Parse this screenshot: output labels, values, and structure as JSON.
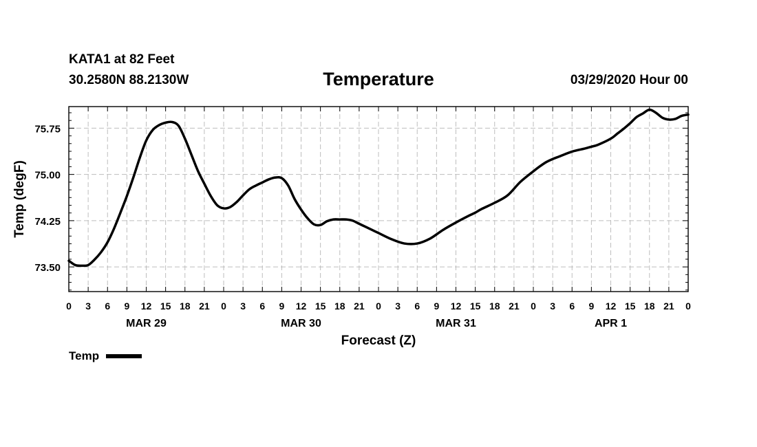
{
  "header": {
    "station": "KATA1 at 82 Feet",
    "coords": "30.2580N 88.2130W",
    "title": "Temperature",
    "issued": "03/29/2020 Hour 00"
  },
  "chart_data": {
    "type": "line",
    "title": "Temperature",
    "xlabel": "Forecast (Z)",
    "ylabel": "Temp (degF)",
    "ylim": [
      73.1,
      76.1
    ],
    "yticks": [
      73.5,
      74.25,
      75.0,
      75.75
    ],
    "ytick_labels": [
      "73.50",
      "74.25",
      "75.00",
      "75.75"
    ],
    "xlim": [
      0,
      96
    ],
    "xticks": [
      0,
      3,
      6,
      9,
      12,
      15,
      18,
      21,
      24,
      27,
      30,
      33,
      36,
      39,
      42,
      45,
      48,
      51,
      54,
      57,
      60,
      63,
      66,
      69,
      72,
      75,
      78,
      81,
      84,
      87,
      90,
      93,
      96
    ],
    "xtick_labels": [
      "0",
      "3",
      "6",
      "9",
      "12",
      "15",
      "18",
      "21",
      "0",
      "3",
      "6",
      "9",
      "12",
      "15",
      "18",
      "21",
      "0",
      "3",
      "6",
      "9",
      "12",
      "15",
      "18",
      "21",
      "0",
      "3",
      "6",
      "9",
      "12",
      "15",
      "18",
      "21",
      "0"
    ],
    "day_labels": [
      {
        "hour": 12,
        "label": "MAR 29"
      },
      {
        "hour": 36,
        "label": "MAR 30"
      },
      {
        "hour": 60,
        "label": "MAR 31"
      },
      {
        "hour": 84,
        "label": "APR 1"
      }
    ],
    "grid": true,
    "legend": "bottom-left",
    "series": [
      {
        "name": "Temp",
        "color": "#000000",
        "x": [
          0,
          1,
          2,
          3,
          4,
          5,
          6,
          7,
          8,
          9,
          10,
          11,
          12,
          13,
          14,
          15,
          16,
          17,
          18,
          19,
          20,
          21,
          22,
          23,
          24,
          25,
          26,
          27,
          28,
          29,
          30,
          31,
          32,
          33,
          34,
          35,
          36,
          37,
          38,
          39,
          40,
          41,
          42,
          43,
          44,
          45,
          46,
          47,
          48,
          50,
          52,
          54,
          56,
          58,
          60,
          62,
          63,
          64,
          66,
          68,
          70,
          72,
          73,
          74,
          75,
          76,
          78,
          80,
          81,
          82,
          84,
          85,
          86,
          87,
          88,
          89,
          90,
          91,
          92,
          93,
          94,
          95,
          96
        ],
        "values": [
          73.6,
          73.53,
          73.52,
          73.53,
          73.62,
          73.74,
          73.9,
          74.12,
          74.38,
          74.65,
          74.95,
          75.27,
          75.55,
          75.72,
          75.8,
          75.84,
          75.85,
          75.79,
          75.58,
          75.32,
          75.06,
          74.85,
          74.65,
          74.5,
          74.45,
          74.47,
          74.55,
          74.66,
          74.76,
          74.82,
          74.87,
          74.92,
          74.95,
          74.94,
          74.82,
          74.6,
          74.43,
          74.29,
          74.19,
          74.18,
          74.24,
          74.27,
          74.27,
          74.27,
          74.25,
          74.2,
          74.15,
          74.1,
          74.05,
          73.95,
          73.88,
          73.88,
          73.96,
          74.1,
          74.22,
          74.33,
          74.38,
          74.44,
          74.54,
          74.66,
          74.88,
          75.05,
          75.13,
          75.2,
          75.25,
          75.29,
          75.37,
          75.42,
          75.45,
          75.48,
          75.58,
          75.66,
          75.74,
          75.83,
          75.93,
          75.99,
          76.05,
          76.0,
          75.92,
          75.89,
          75.9,
          75.95,
          75.97
        ]
      }
    ],
    "legend_label": "Temp"
  }
}
